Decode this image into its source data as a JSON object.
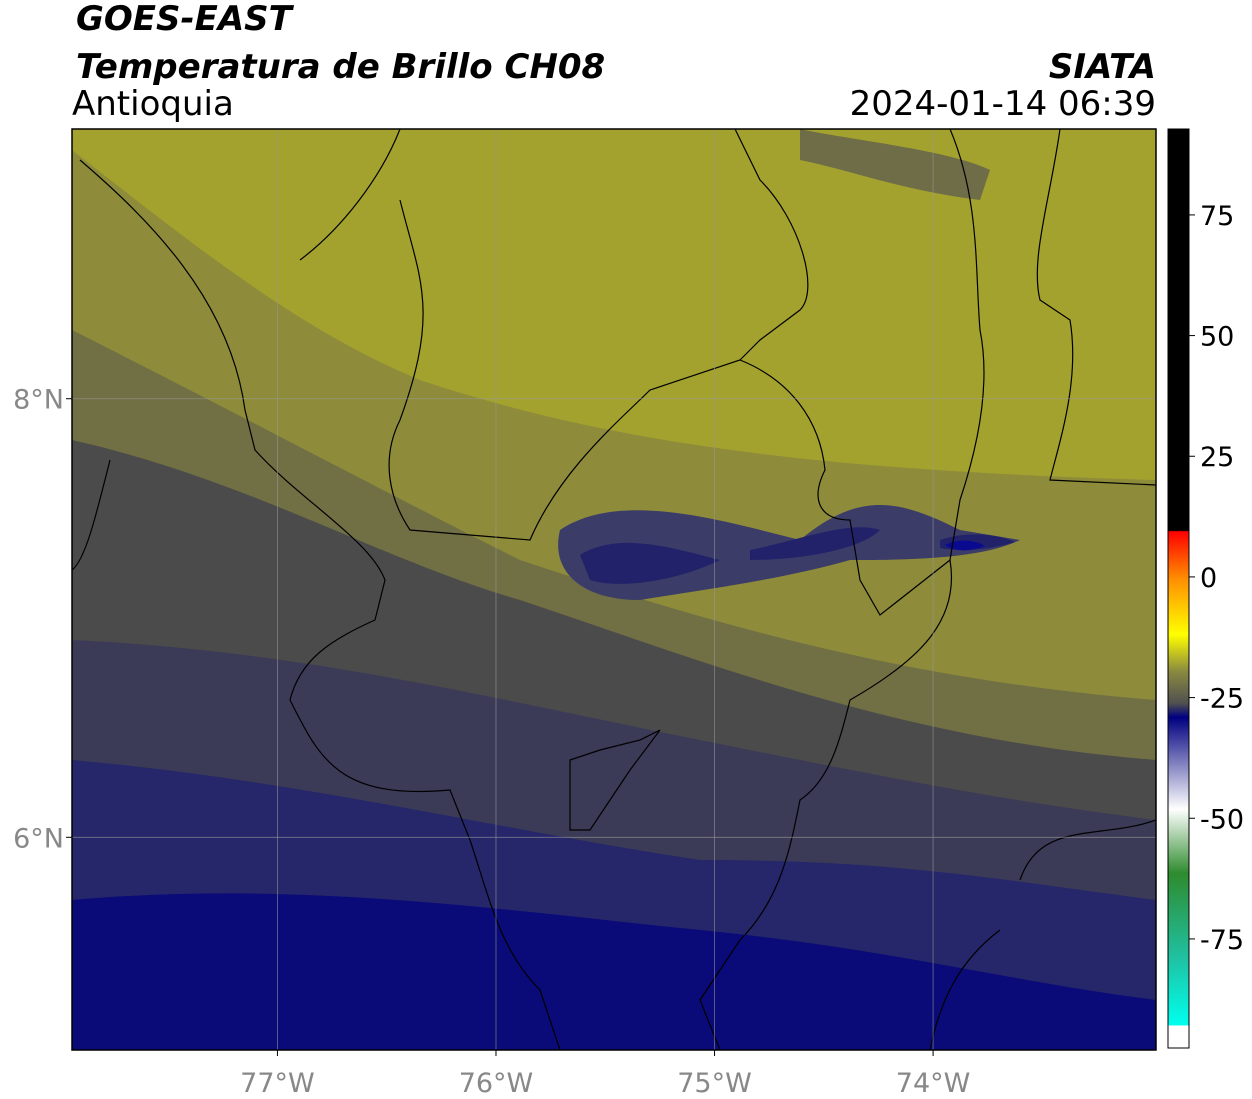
{
  "header": {
    "satellite": "GOES-EAST",
    "product": "Temperatura de Brillo CH08",
    "region": "Antioquia",
    "source": "SIATA",
    "datetime": "2024-01-14 06:39"
  },
  "map": {
    "xlim": [
      -77.94,
      -72.98
    ],
    "ylim": [
      5.03,
      9.23
    ],
    "xticks": [
      {
        "value": -77,
        "label": "77°W"
      },
      {
        "value": -76,
        "label": "76°W"
      },
      {
        "value": -75,
        "label": "75°W"
      },
      {
        "value": -74,
        "label": "74°W"
      }
    ],
    "yticks": [
      {
        "value": 8,
        "label": "8°N"
      },
      {
        "value": 6,
        "label": "6°N"
      }
    ],
    "grid": true
  },
  "colorbar": {
    "lim": [
      -97.6,
      92.8
    ],
    "ticks": [
      -75,
      -50,
      -25,
      0,
      25,
      50,
      75
    ]
  }
}
